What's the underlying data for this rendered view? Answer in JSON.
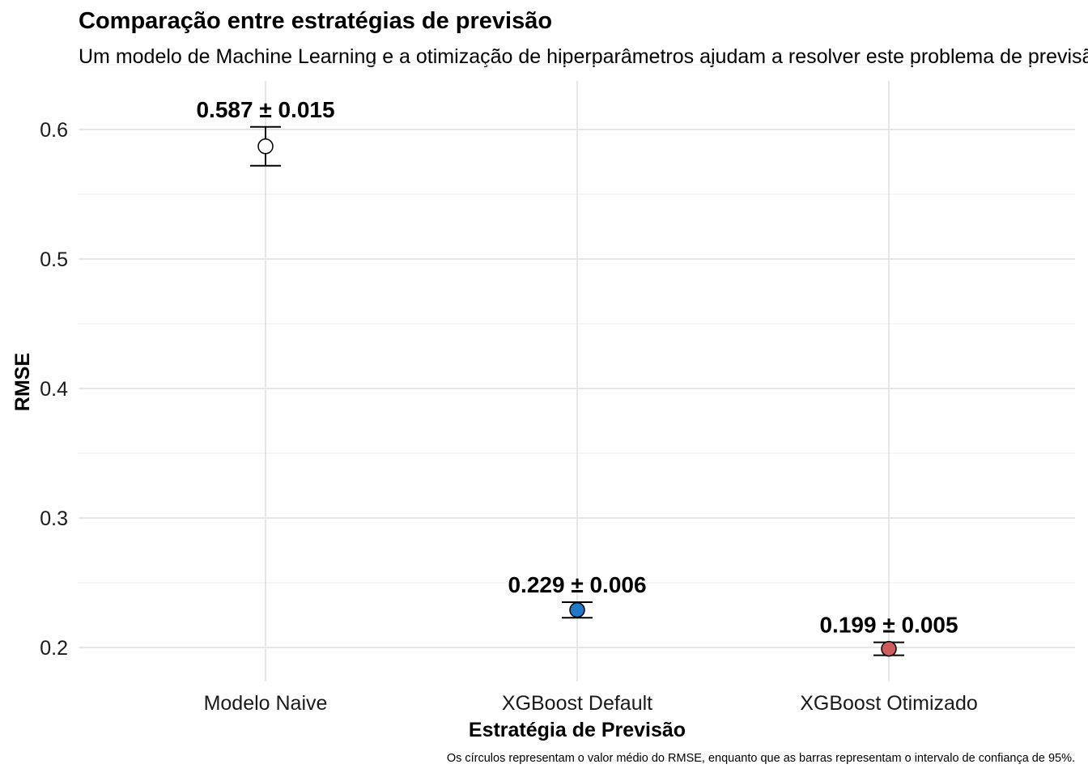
{
  "chart_data": {
    "type": "scatter",
    "title": "Comparação entre estratégias de previsão",
    "subtitle": "Um modelo de Machine Learning e a otimização de hiperparâmetros ajudam a resolver este problema de previsão",
    "caption": "Os círculos representam o valor médio do RMSE, enquanto que as barras representam o intervalo de confiança de 95%.",
    "xlabel": "Estratégia de Previsão",
    "ylabel": "RMSE",
    "categories": [
      "Modelo Naive",
      "XGBoost Default",
      "XGBoost Otimizado"
    ],
    "values": [
      0.587,
      0.229,
      0.199
    ],
    "errors": [
      0.015,
      0.006,
      0.005
    ],
    "labels": [
      "0.587 ± 0.015",
      "0.229 ± 0.006",
      "0.199 ± 0.005"
    ],
    "point_colors": [
      "#ffffff",
      "#1f78c8",
      "#cd5c5c"
    ],
    "yticks": [
      "0.2",
      "0.3",
      "0.4",
      "0.5",
      "0.6"
    ],
    "ylim": [
      0.174,
      0.64
    ],
    "grid": true,
    "legend": "none"
  }
}
